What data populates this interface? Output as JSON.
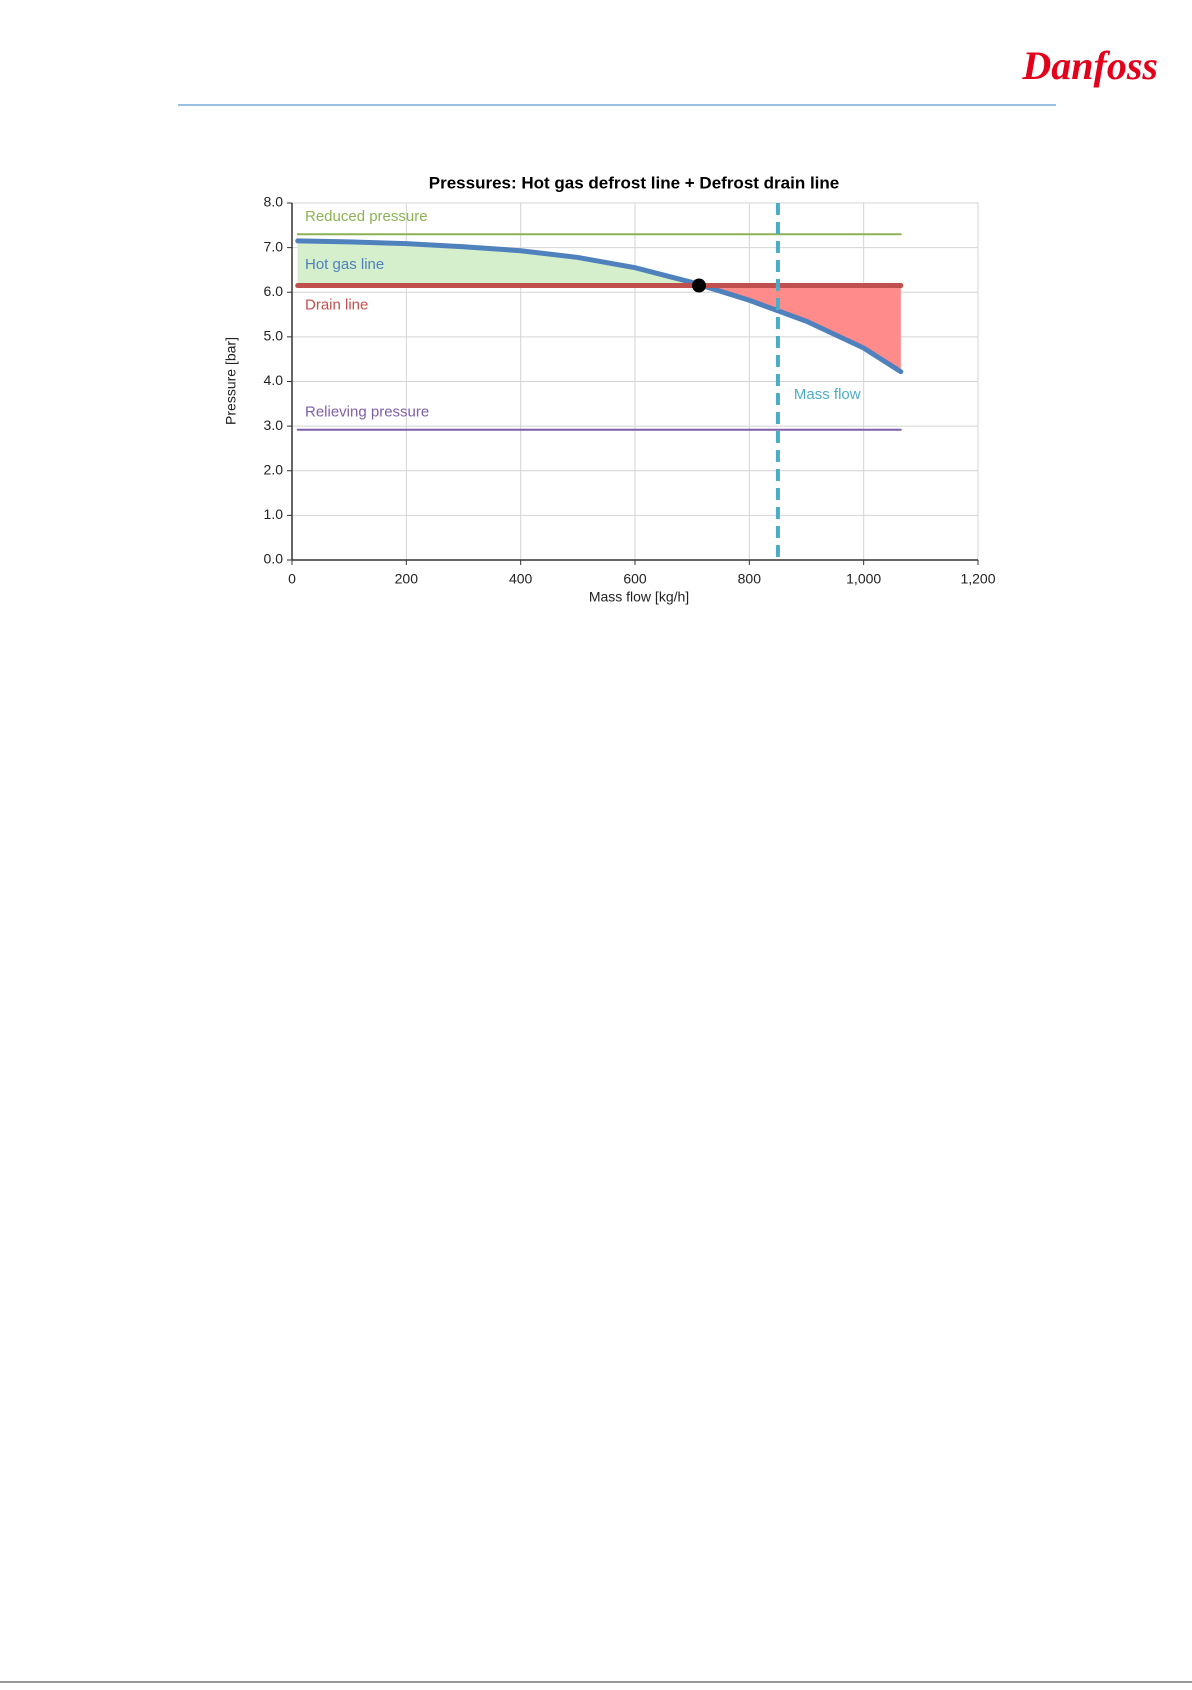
{
  "header": {
    "logo": "Danfoss"
  },
  "chart_data": {
    "type": "line",
    "title": "Pressures: Hot gas defrost line + Defrost drain line",
    "x_label": "Mass flow [kg/h]",
    "y_label": "Pressure [bar]",
    "xlim": [
      0,
      1200
    ],
    "ylim": [
      0,
      8
    ],
    "xticks": [
      0,
      200,
      400,
      600,
      800,
      {
        "value": 1000,
        "label": "1,000"
      },
      {
        "value": 1200,
        "label": "1,200"
      }
    ],
    "yticks": [
      {
        "value": 0,
        "label": "0.0"
      },
      {
        "value": 1,
        "label": "1.0"
      },
      {
        "value": 2,
        "label": "2.0"
      },
      {
        "value": 3,
        "label": "3.0"
      },
      {
        "value": 4,
        "label": "4.0"
      },
      {
        "value": 5,
        "label": "5.0"
      },
      {
        "value": 6,
        "label": "6.0"
      },
      {
        "value": 7,
        "label": "7.0"
      },
      {
        "value": 8,
        "label": "8.0"
      }
    ],
    "grid": true,
    "series": [
      {
        "name": "Reduced pressure",
        "color": "#8db255",
        "x": [
          10,
          1065
        ],
        "values": [
          7.3,
          7.3
        ]
      },
      {
        "name": "Hot gas line",
        "color": "#4f81bd",
        "x": [
          10,
          100,
          200,
          300,
          400,
          500,
          600,
          700,
          800,
          900,
          1000,
          1065
        ],
        "values": [
          7.15,
          7.13,
          7.09,
          7.02,
          6.93,
          6.78,
          6.55,
          6.22,
          5.82,
          5.35,
          4.75,
          4.22
        ]
      },
      {
        "name": "Drain line",
        "color": "#c0504d",
        "x": [
          10,
          1065
        ],
        "values": [
          6.15,
          6.15
        ]
      },
      {
        "name": "Relieving pressure",
        "color": "#7f5fa8",
        "x": [
          10,
          1065
        ],
        "values": [
          2.92,
          2.92
        ]
      }
    ],
    "vlines": [
      {
        "name": "Mass flow",
        "x": 850,
        "color": "#4bacc6"
      }
    ],
    "intersection": {
      "x": 712,
      "y": 6.15
    },
    "fill_colors": [
      "#d5eecb",
      "#ff8b8b"
    ]
  }
}
